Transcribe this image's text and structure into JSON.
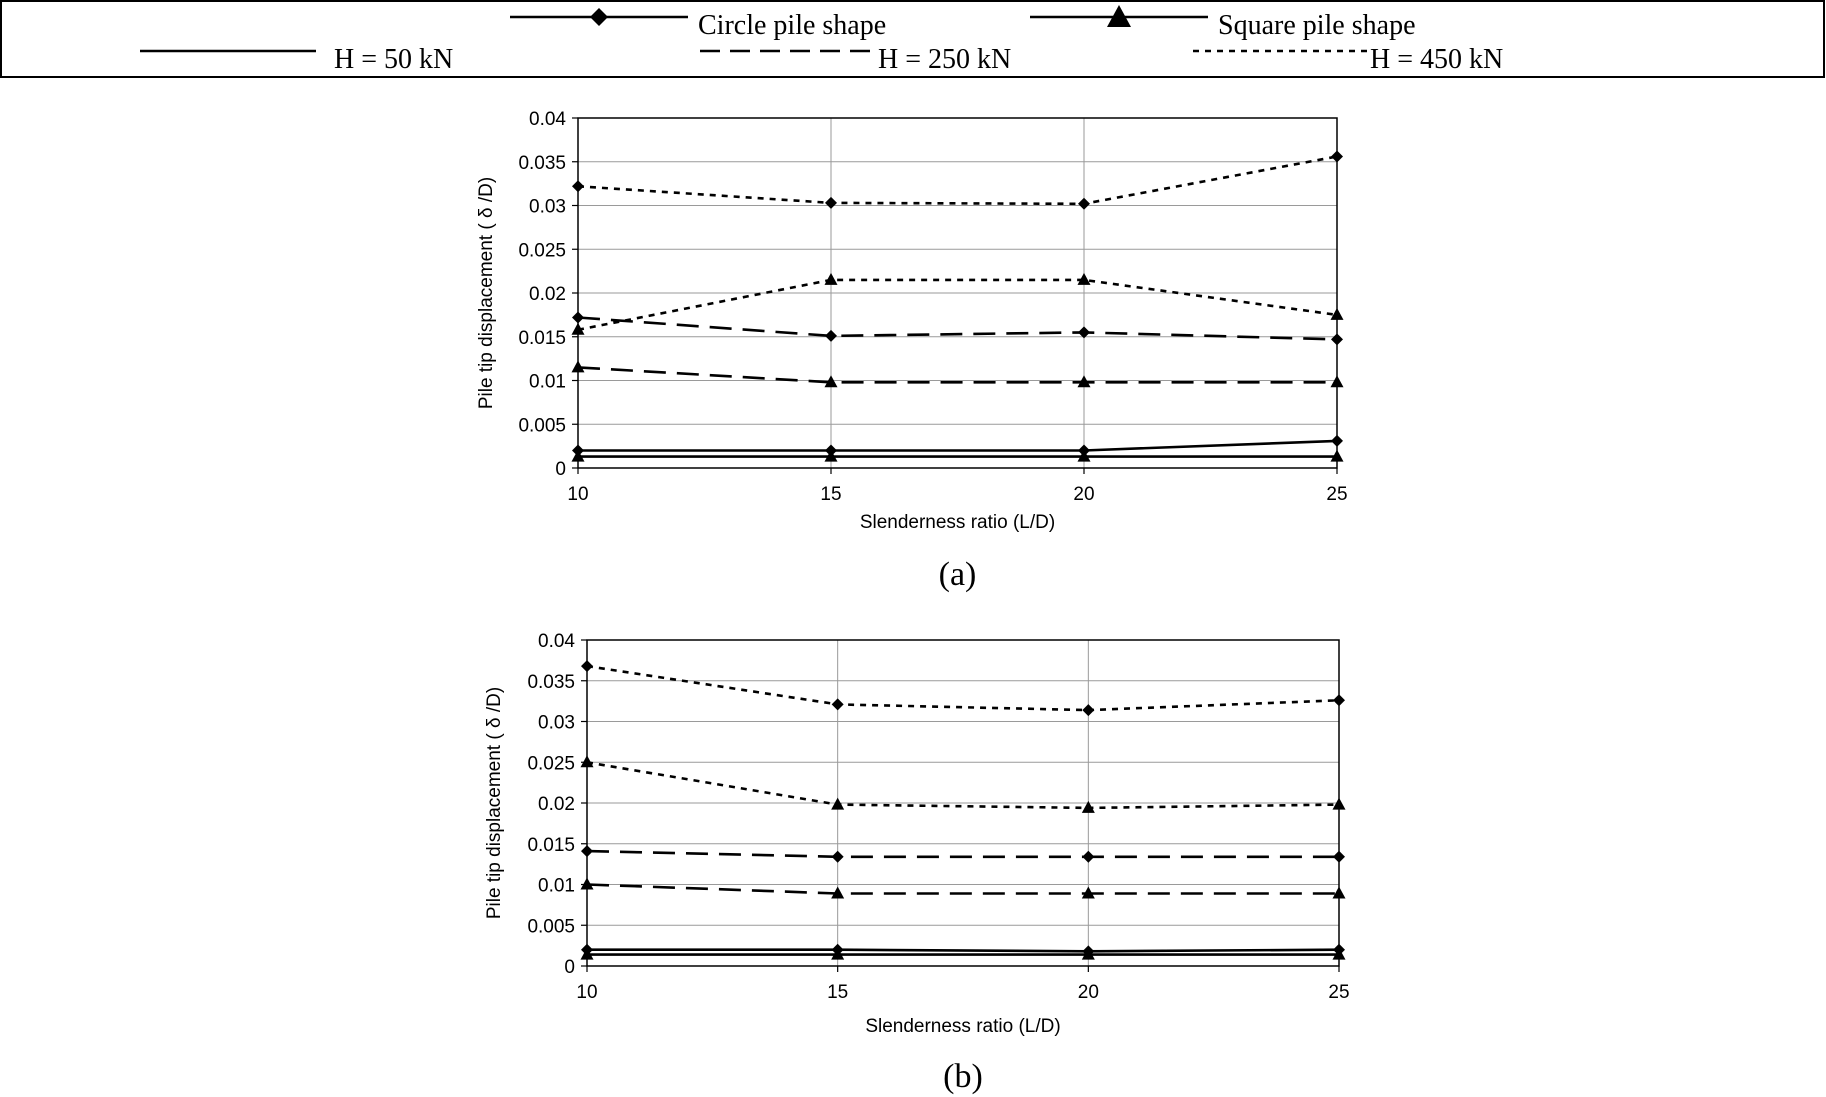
{
  "legend": {
    "items": [
      {
        "label": "Circle pile shape",
        "marker": "diamond",
        "dash": "solid"
      },
      {
        "label": "Square pile shape",
        "marker": "triangle",
        "dash": "solid"
      },
      {
        "label": "H = 50 kN",
        "marker": "none",
        "dash": "solid"
      },
      {
        "label": "H = 250 kN",
        "marker": "none",
        "dash": "long"
      },
      {
        "label": "H = 450 kN",
        "marker": "none",
        "dash": "short"
      }
    ]
  },
  "chart_data": [
    {
      "type": "line",
      "panel_label": "(a)",
      "xlabel": "Slenderness ratio (L/D)",
      "ylabel": "Pile tip displacement ( δ /D)",
      "x": [
        10,
        15,
        20,
        25
      ],
      "xlim": [
        10,
        25
      ],
      "ylim": [
        0,
        0.04
      ],
      "x_ticks": [
        "10",
        "15",
        "20",
        "25"
      ],
      "y_ticks": [
        "0",
        "0.005",
        "0.01",
        "0.015",
        "0.02",
        "0.025",
        "0.03",
        "0.035",
        "0.04"
      ],
      "grid": true,
      "series": [
        {
          "shape": "circle",
          "load": "H = 50 kN",
          "values": [
            0.002,
            0.002,
            0.002,
            0.0031
          ]
        },
        {
          "shape": "square",
          "load": "H = 50 kN",
          "values": [
            0.0013,
            0.0013,
            0.0013,
            0.0013
          ]
        },
        {
          "shape": "circle",
          "load": "H = 250 kN",
          "values": [
            0.0172,
            0.0151,
            0.0155,
            0.0147
          ]
        },
        {
          "shape": "square",
          "load": "H = 250 kN",
          "values": [
            0.0115,
            0.0098,
            0.0098,
            0.0098
          ]
        },
        {
          "shape": "circle",
          "load": "H = 450 kN",
          "values": [
            0.0322,
            0.0303,
            0.0302,
            0.0356
          ]
        },
        {
          "shape": "square",
          "load": "H = 450 kN",
          "values": [
            0.0158,
            0.0215,
            0.0215,
            0.0175
          ]
        }
      ]
    },
    {
      "type": "line",
      "panel_label": "(b)",
      "xlabel": "Slenderness ratio (L/D)",
      "ylabel": "Pile tip displacement ( δ /D)",
      "x": [
        10,
        15,
        20,
        25
      ],
      "xlim": [
        10,
        25
      ],
      "ylim": [
        0,
        0.04
      ],
      "x_ticks": [
        "10",
        "15",
        "20",
        "25"
      ],
      "y_ticks": [
        "0",
        "0.005",
        "0.01",
        "0.015",
        "0.02",
        "0.025",
        "0.03",
        "0.035",
        "0.04"
      ],
      "grid": true,
      "series": [
        {
          "shape": "circle",
          "load": "H = 50 kN",
          "values": [
            0.002,
            0.002,
            0.0018,
            0.002
          ]
        },
        {
          "shape": "square",
          "load": "H = 50 kN",
          "values": [
            0.0014,
            0.0014,
            0.0014,
            0.0014
          ]
        },
        {
          "shape": "circle",
          "load": "H = 250 kN",
          "values": [
            0.0141,
            0.0134,
            0.0134,
            0.0134
          ]
        },
        {
          "shape": "square",
          "load": "H = 250 kN",
          "values": [
            0.01,
            0.0089,
            0.0089,
            0.0089
          ]
        },
        {
          "shape": "circle",
          "load": "H = 450 kN",
          "values": [
            0.0368,
            0.0321,
            0.0314,
            0.0326
          ]
        },
        {
          "shape": "square",
          "load": "H = 450 kN",
          "values": [
            0.025,
            0.0198,
            0.0194,
            0.0198
          ]
        }
      ]
    }
  ]
}
